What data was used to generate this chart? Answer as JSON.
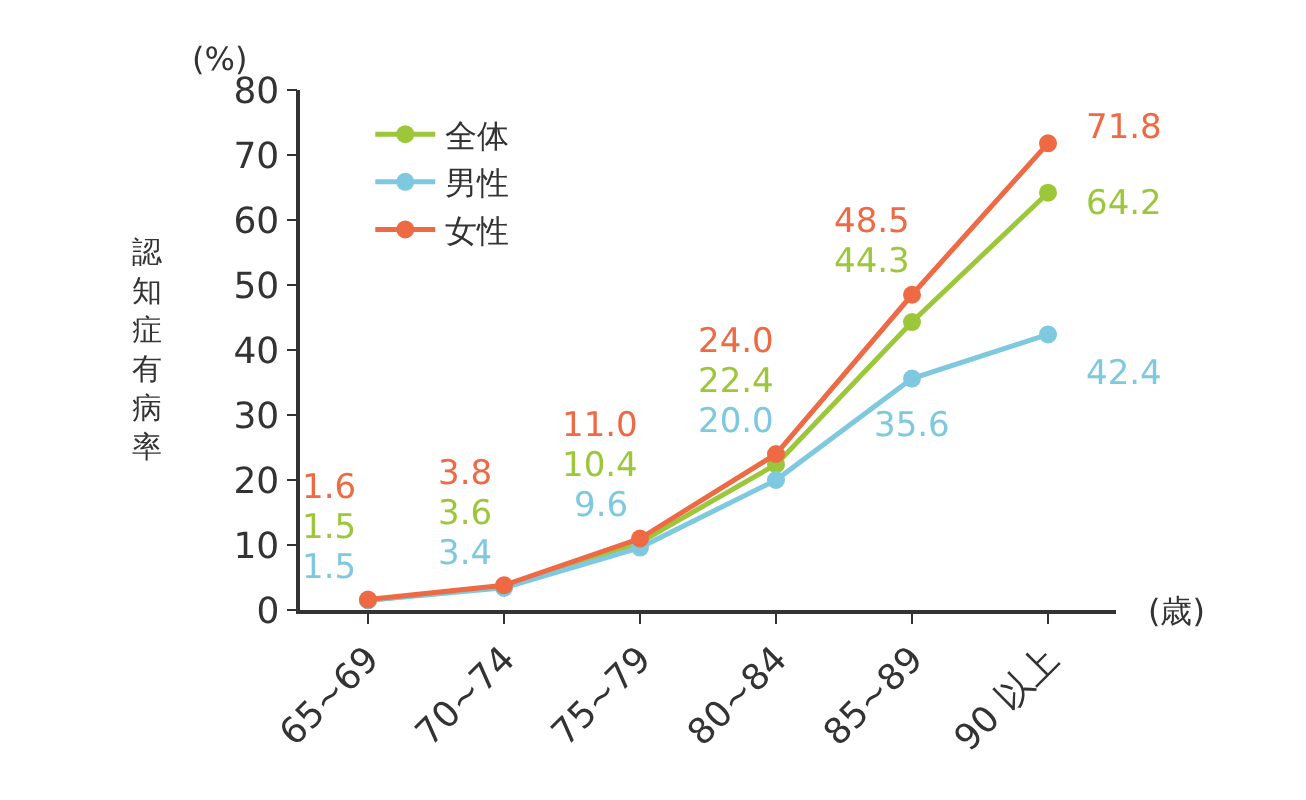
{
  "chart_data": {
    "type": "line",
    "ylabel": "認知症有病率",
    "xlabel": "(歳)",
    "annotations": [
      "(%)"
    ],
    "categories": [
      "65~69",
      "70~74",
      "75~79",
      "80~84",
      "85~89",
      "90 以上"
    ],
    "series": [
      {
        "name": "全体",
        "color": "#9dc73b",
        "values": [
          1.5,
          3.6,
          10.4,
          22.4,
          44.3,
          64.2
        ],
        "value_labels": [
          "1.5",
          "3.6",
          "10.4",
          "22.4",
          "44.3",
          "64.2"
        ]
      },
      {
        "name": "男性",
        "color": "#7ec8e0",
        "values": [
          1.5,
          3.4,
          9.6,
          20.0,
          35.6,
          42.4
        ],
        "value_labels": [
          "1.5",
          "3.4",
          "9.6",
          "20.0",
          "35.6",
          "42.4"
        ]
      },
      {
        "name": "女性",
        "color": "#ee6a45",
        "values": [
          1.6,
          3.8,
          11.0,
          24.0,
          48.5,
          71.8
        ],
        "value_labels": [
          "1.6",
          "3.8",
          "11.0",
          "24.0",
          "48.5",
          "71.8"
        ]
      }
    ],
    "ylim": [
      0,
      80
    ],
    "yticks": [
      0,
      10,
      20,
      30,
      40,
      50,
      60,
      70,
      80
    ],
    "marker": "circle",
    "line_style": "solid",
    "legend": "top left"
  }
}
